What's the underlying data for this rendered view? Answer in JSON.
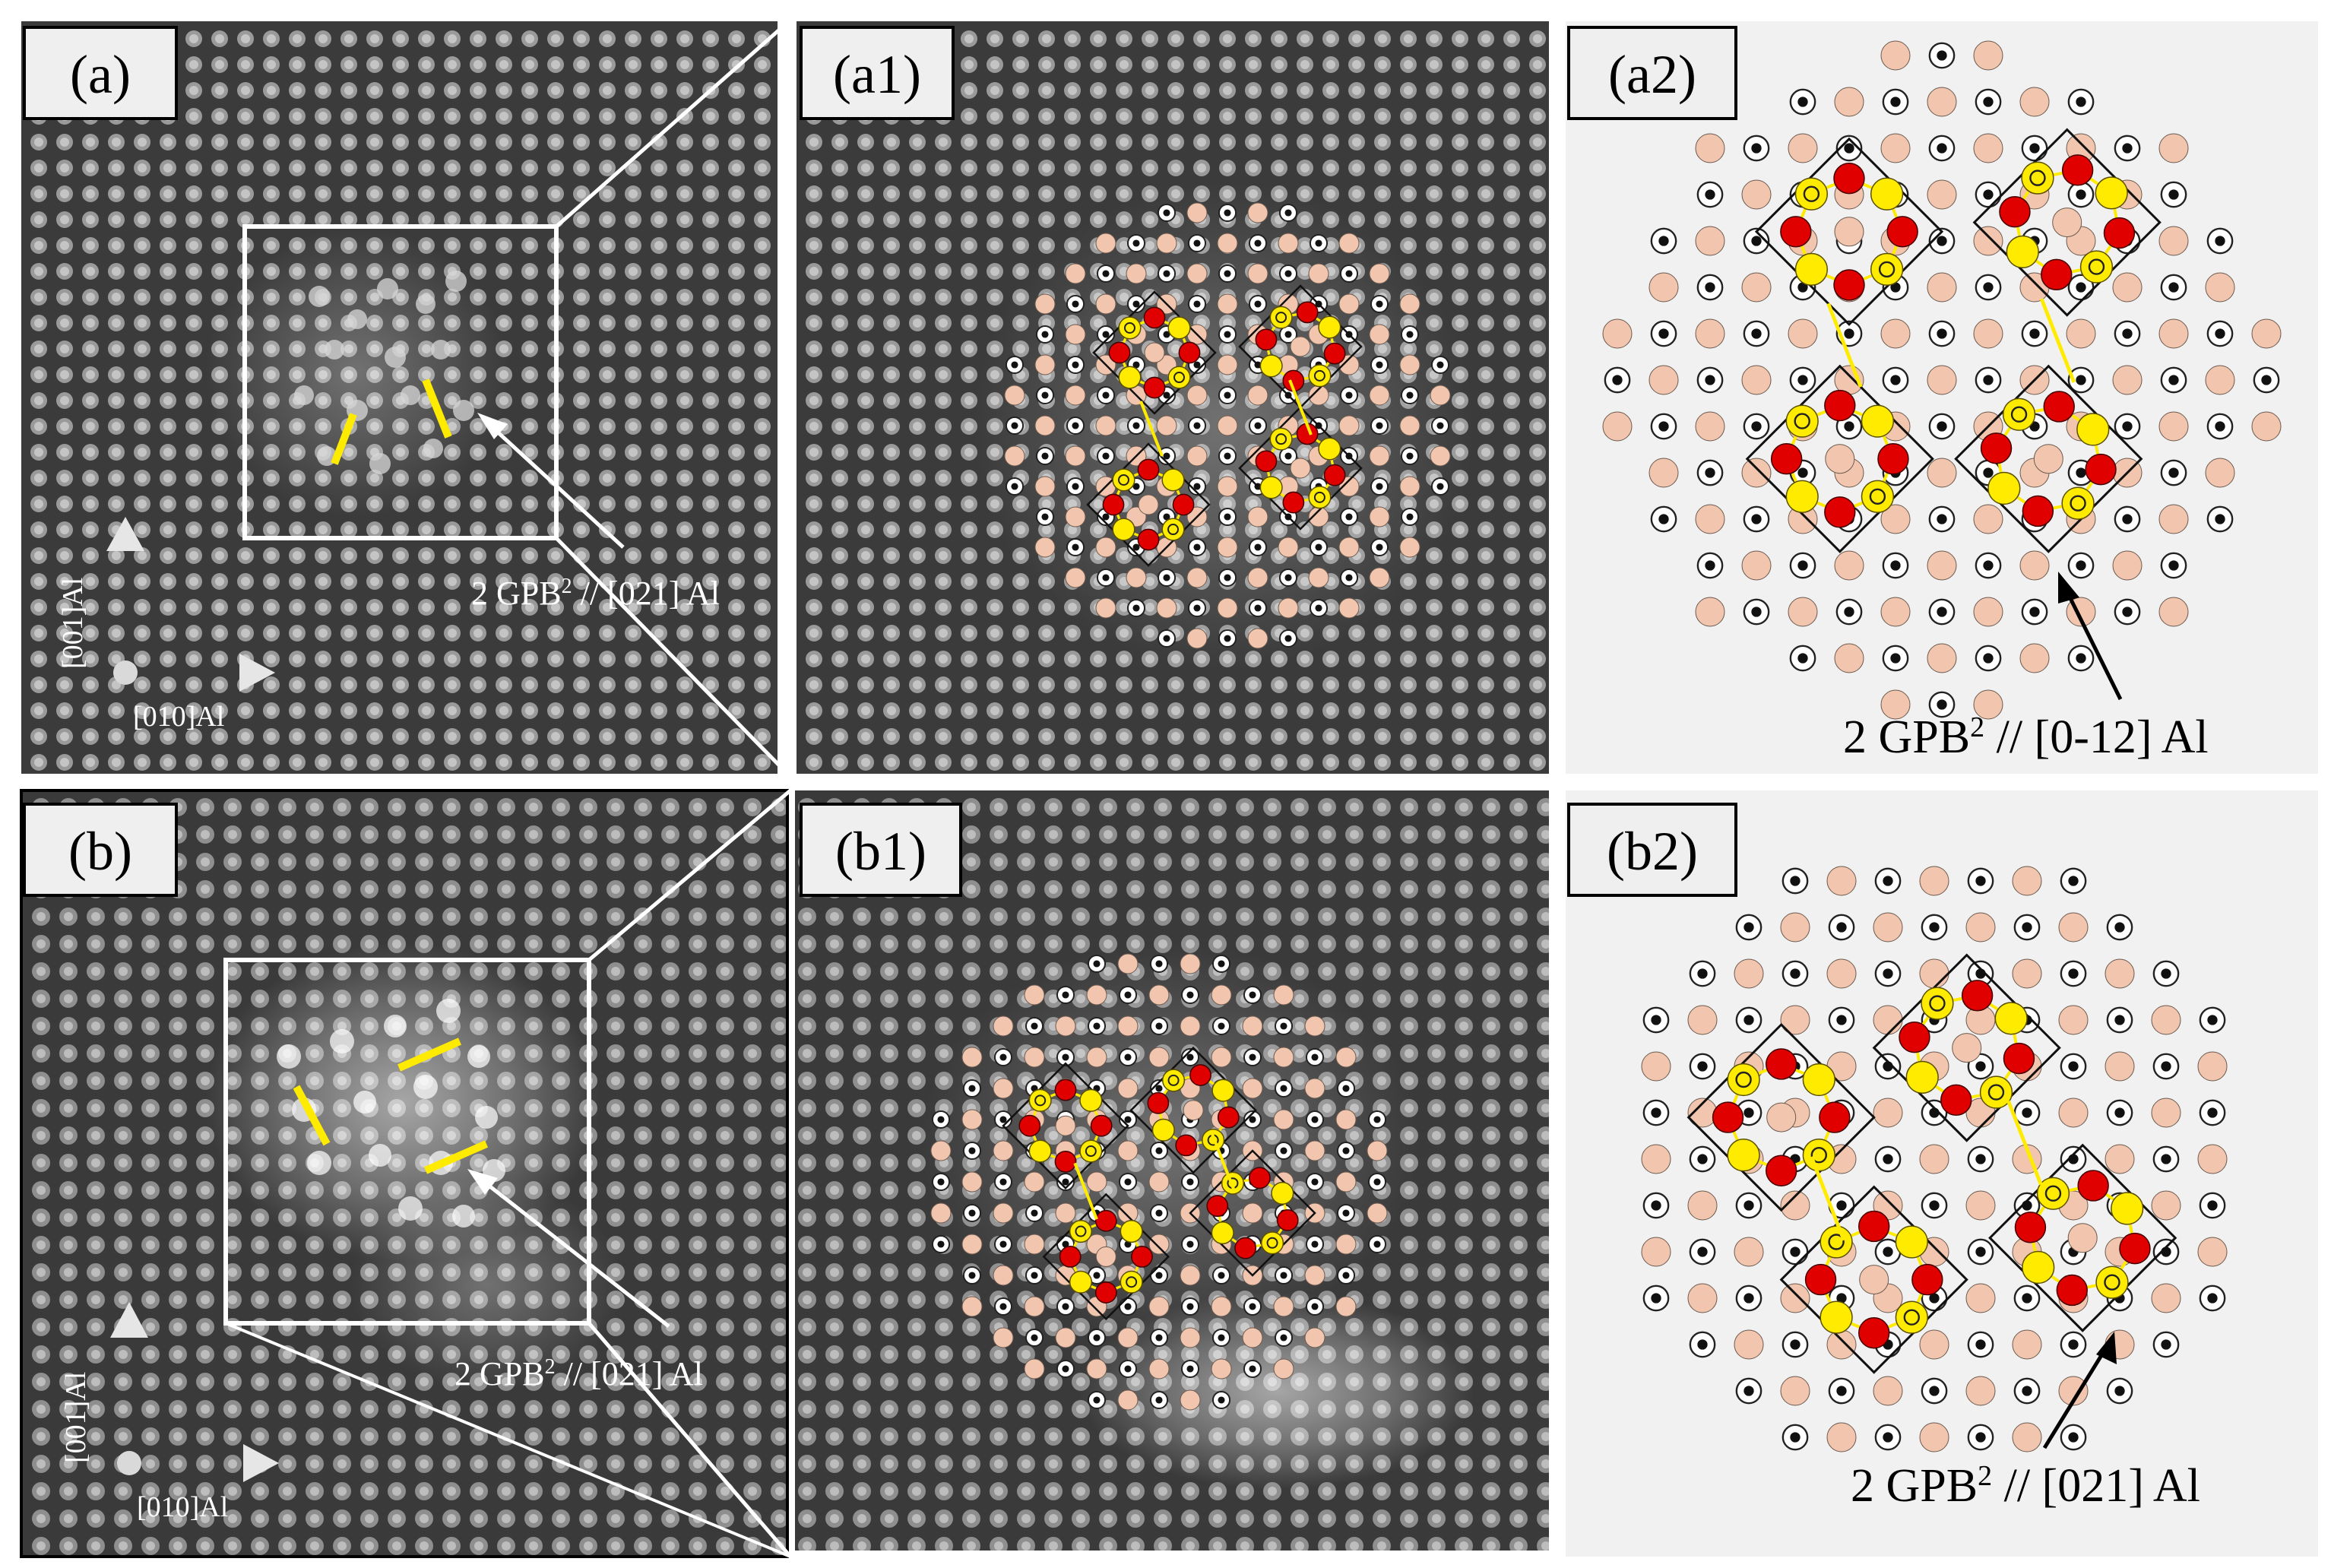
{
  "panels": {
    "a": {
      "label": "(a)",
      "annotation": {
        "prefix": "2 GPB",
        "sup": "2",
        "suffix": " // [021] Al"
      }
    },
    "a1": {
      "label": "(a1)"
    },
    "a2": {
      "label": "(a2)",
      "annotation": {
        "prefix": "2 GPB",
        "sup": "2",
        "suffix": " // [0-12] Al"
      }
    },
    "b": {
      "label": "(b)",
      "annotation": {
        "prefix": "2 GPB",
        "sup": "2",
        "suffix": " // [021] Al"
      }
    },
    "b1": {
      "label": "(b1)"
    },
    "b2": {
      "label": "(b2)",
      "annotation": {
        "prefix": "2 GPB",
        "sup": "2",
        "suffix": " // [021] Al"
      }
    }
  },
  "axes": {
    "vertical": "[001]Al",
    "horizontal": "[010]Al"
  },
  "icons": {
    "axis": "axis-arrows-icon",
    "pointer": "pointer-arrow-icon"
  },
  "colors": {
    "lattice_dark": "#2e2e2e",
    "atom_al": "#f2c6ae",
    "atom_cu": "#e00000",
    "atom_mg": "#ffeb00",
    "frame": "#ffffff",
    "schematic_bg": "#f1f1f1",
    "highlight_line": "#ffeb00"
  }
}
